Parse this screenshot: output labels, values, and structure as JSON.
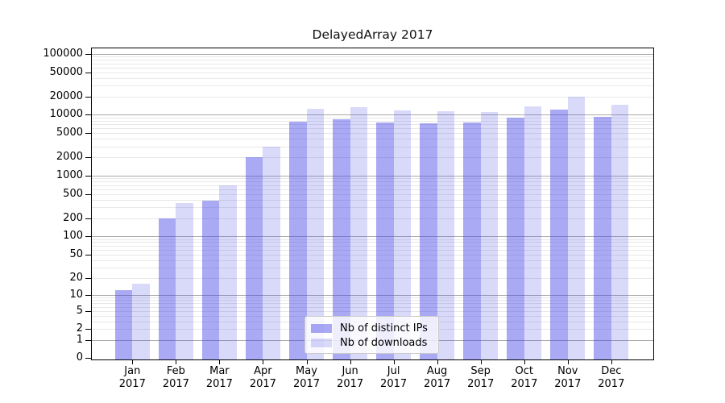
{
  "title": "DelayedArray 2017",
  "colors": {
    "ips_fill": "rgba(64,64,230,0.45)",
    "downloads_fill": "rgba(64,64,230,0.20)",
    "grid_major": "#aaaaaa",
    "grid_minor": "#e8e8e8",
    "axis": "#000000",
    "legend_border": "#cbcbcb"
  },
  "legend": {
    "items": [
      {
        "label": "Nb of distinct IPs"
      },
      {
        "label": "Nb of downloads"
      }
    ]
  },
  "chart_data": {
    "type": "bar",
    "title": "DelayedArray 2017",
    "categories": [
      "Jan",
      "Feb",
      "Mar",
      "Apr",
      "May",
      "Jun",
      "Jul",
      "Aug",
      "Sep",
      "Oct",
      "Nov",
      "Dec"
    ],
    "x_tick_second_line": "2017",
    "series": [
      {
        "name": "Nb of distinct IPs",
        "values": [
          12,
          197,
          390,
          2000,
          7800,
          8400,
          7450,
          7250,
          7400,
          9100,
          12000,
          9300
        ]
      },
      {
        "name": "Nb of downloads",
        "values": [
          16,
          355,
          700,
          3000,
          12500,
          13200,
          11800,
          11450,
          11100,
          13900,
          19800,
          14700
        ]
      }
    ],
    "y_scale": "log1p",
    "ylim": [
      0,
      100000
    ],
    "y_tick_values": [
      0,
      1,
      2,
      5,
      10,
      20,
      50,
      100,
      200,
      500,
      1000,
      2000,
      5000,
      10000,
      20000,
      50000,
      100000
    ],
    "y_major_gridlines": [
      1,
      10,
      100,
      1000,
      10000,
      100000
    ],
    "grid": "on",
    "legend_position": "lower center"
  }
}
